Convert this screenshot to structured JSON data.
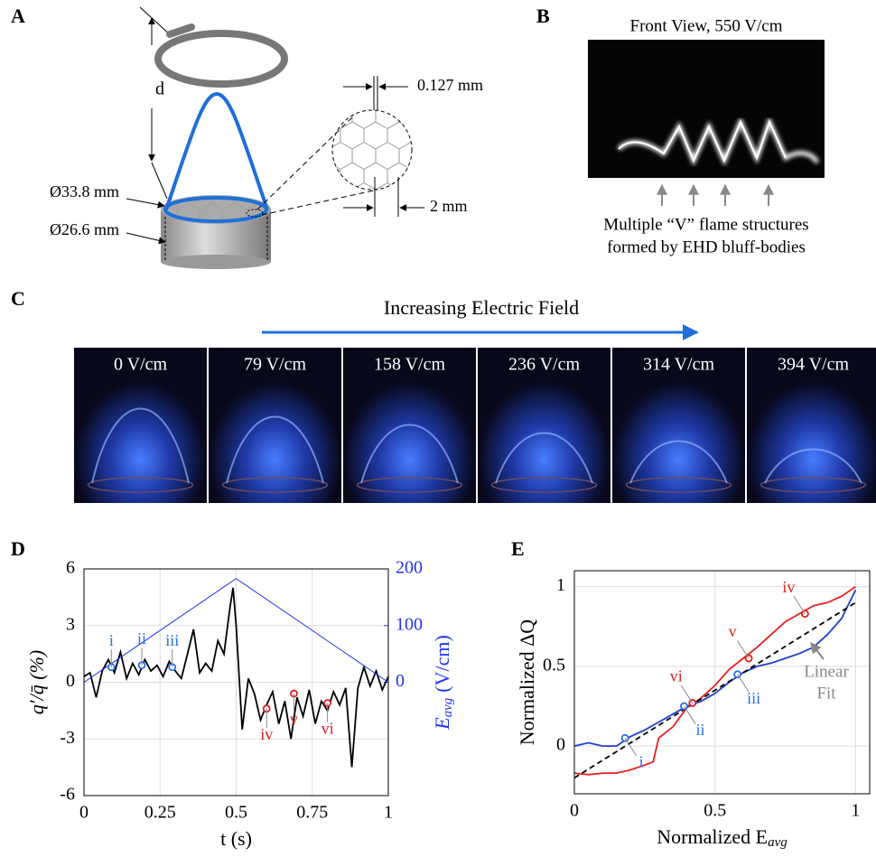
{
  "panel_labels": [
    "A",
    "B",
    "C",
    "D",
    "E"
  ],
  "schematic": {
    "d": "d",
    "outer_diameter": "Ø33.8 mm",
    "inner_diameter": "Ø26.6 mm",
    "wire": "0.127 mm",
    "cell": "2 mm"
  },
  "front_view": {
    "title": "Front View, 550 V/cm",
    "caption": [
      "Multiple “V” flame structures",
      "formed by EHD bluff-bodies"
    ]
  },
  "field_sequence": {
    "title": "Increasing Electric Field",
    "frames": [
      "0 V/cm",
      "79 V/cm",
      "158 V/cm",
      "236 V/cm",
      "314 V/cm",
      "394 V/cm"
    ]
  },
  "chart_data": [
    {
      "type": "line",
      "xlabel": "t (s)",
      "ylabel": "q′/q̄ (%)",
      "y2label": "E",
      "y2label_sub": "avg",
      "y2label_unit": "(V/cm)",
      "xlim": [
        0,
        1
      ],
      "xticks": [
        0,
        0.25,
        0.5,
        0.75,
        1
      ],
      "ylim": [
        -6,
        6
      ],
      "yticks": [
        -6,
        -3,
        0,
        3,
        6
      ],
      "y2lim": [
        -200,
        200
      ],
      "y2ticks": [
        0,
        100,
        200
      ],
      "grid": true,
      "series": [
        {
          "color": "#000000",
          "x": [
            0,
            0.02,
            0.04,
            0.06,
            0.08,
            0.1,
            0.12,
            0.14,
            0.16,
            0.18,
            0.2,
            0.22,
            0.24,
            0.26,
            0.28,
            0.3,
            0.32,
            0.34,
            0.36,
            0.38,
            0.4,
            0.42,
            0.44,
            0.46,
            0.48,
            0.49,
            0.5,
            0.52,
            0.54,
            0.56,
            0.58,
            0.6,
            0.62,
            0.64,
            0.66,
            0.68,
            0.7,
            0.72,
            0.74,
            0.76,
            0.78,
            0.8,
            0.82,
            0.84,
            0.86,
            0.88,
            0.9,
            0.92,
            0.94,
            0.96,
            0.98,
            1
          ],
          "values": [
            0.3,
            0.5,
            -0.8,
            0.6,
            1.2,
            0.5,
            1.6,
            0.2,
            1.0,
            0.4,
            1.2,
            0.6,
            0.9,
            0.3,
            1.1,
            0.6,
            0.2,
            1.5,
            2.8,
            0.5,
            1.0,
            0.6,
            2.2,
            1.5,
            4.0,
            5.0,
            3.0,
            -2.5,
            0.2,
            -0.6,
            -2.0,
            -1.2,
            -0.5,
            -2.2,
            -1.0,
            -3.0,
            -0.8,
            -1.8,
            -0.4,
            -2.2,
            -1.0,
            -1.5,
            -0.5,
            -1.2,
            -0.3,
            -4.5,
            -0.3,
            0.8,
            -0.2,
            0.6,
            -0.4,
            0.3
          ]
        },
        {
          "axis": "y2",
          "color": "#2233ee",
          "x": [
            0,
            0.5,
            1
          ],
          "values": [
            0,
            183,
            0
          ]
        }
      ],
      "markers": {
        "x": [
          0.09,
          0.19,
          0.29,
          0.6,
          0.69,
          0.8
        ],
        "values": [
          0.8,
          0.9,
          0.8,
          -1.4,
          -0.6,
          -1.1
        ],
        "labels": [
          "i",
          "ii",
          "iii",
          "iv",
          "v",
          "vi"
        ],
        "colors": [
          "#2a6ee8",
          "#2a6ee8",
          "#2a6ee8",
          "#e02020",
          "#e02020",
          "#e02020"
        ]
      }
    },
    {
      "type": "line",
      "xlabel": "Normalized E",
      "xlabel_sub": "avg",
      "ylabel": "Normalized ΔQ",
      "xlim": [
        0,
        1.05
      ],
      "xticks": [
        0,
        0.5,
        1
      ],
      "ylim": [
        -0.3,
        1.1
      ],
      "yticks": [
        0,
        0.5,
        1
      ],
      "grid": true,
      "series": [
        {
          "color": "#1f3fd0",
          "x": [
            0,
            0.05,
            0.1,
            0.15,
            0.2,
            0.25,
            0.3,
            0.35,
            0.4,
            0.45,
            0.5,
            0.55,
            0.6,
            0.65,
            0.7,
            0.75,
            0.8,
            0.85,
            0.9,
            0.95,
            1
          ],
          "values": [
            0.0,
            0.02,
            0.0,
            0.0,
            0.06,
            0.1,
            0.15,
            0.2,
            0.25,
            0.28,
            0.33,
            0.4,
            0.46,
            0.5,
            0.52,
            0.55,
            0.58,
            0.62,
            0.7,
            0.8,
            0.98
          ]
        },
        {
          "color": "#e82020",
          "x": [
            0,
            0.05,
            0.1,
            0.15,
            0.2,
            0.25,
            0.28,
            0.3,
            0.35,
            0.4,
            0.45,
            0.5,
            0.55,
            0.6,
            0.65,
            0.7,
            0.75,
            0.8,
            0.85,
            0.9,
            0.95,
            1
          ],
          "values": [
            -0.17,
            -0.18,
            -0.17,
            -0.17,
            -0.15,
            -0.12,
            -0.1,
            0.05,
            0.12,
            0.24,
            0.3,
            0.38,
            0.48,
            0.55,
            0.62,
            0.7,
            0.78,
            0.83,
            0.88,
            0.9,
            0.94,
            1.0
          ]
        },
        {
          "color": "#000000",
          "dash": true,
          "x": [
            0,
            1
          ],
          "values": [
            -0.2,
            0.9
          ]
        }
      ],
      "markers": {
        "x": [
          0.18,
          0.39,
          0.58,
          0.82,
          0.62,
          0.42
        ],
        "values": [
          0.05,
          0.25,
          0.45,
          0.83,
          0.55,
          0.27
        ],
        "labels": [
          "i",
          "ii",
          "iii",
          "iv",
          "v",
          "vi"
        ],
        "colors": [
          "#2a6ee8",
          "#2a6ee8",
          "#2a6ee8",
          "#e02020",
          "#e02020",
          "#e02020"
        ]
      },
      "annotation": [
        "Linear",
        "Fit"
      ]
    }
  ]
}
